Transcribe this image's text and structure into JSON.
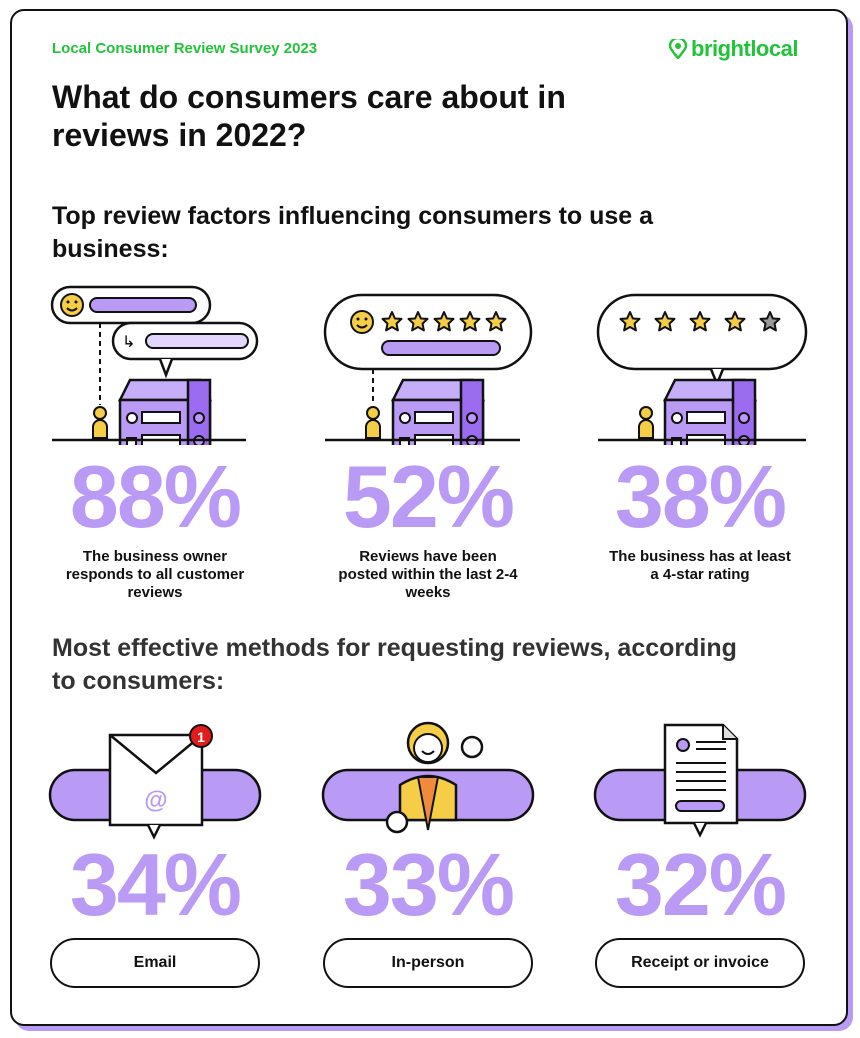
{
  "header": {
    "kicker": "Local Consumer Review Survey 2023",
    "logo_text": "brightlocal",
    "logo_icon": "map-pin-heart-icon"
  },
  "title": "What do consumers care about in reviews in 2022?",
  "section1": {
    "heading": "Top review factors influencing consumers to use a business:",
    "items": [
      {
        "percent": "88%",
        "caption": "The business owner responds to all customer reviews",
        "icon": "owner-reply-storefront"
      },
      {
        "percent": "52%",
        "caption": "Reviews have been posted within the last 2-4 weeks",
        "icon": "recent-review-storefront"
      },
      {
        "percent": "38%",
        "caption": "The business has at least a 4-star rating",
        "icon": "four-star-storefront"
      }
    ]
  },
  "section2": {
    "heading": "Most effective methods for requesting reviews, according to consumers:",
    "items": [
      {
        "percent": "34%",
        "label": "Email",
        "icon": "envelope-icon",
        "badge": "1"
      },
      {
        "percent": "33%",
        "label": "In-person",
        "icon": "person-icon"
      },
      {
        "percent": "32%",
        "label": "Receipt or invoice",
        "icon": "receipt-icon"
      }
    ]
  },
  "colors": {
    "brand_green": "#22c33a",
    "accent_purple": "#b99af5",
    "building_purple": "#9b6cf0",
    "star_yellow": "#f5cd47"
  }
}
